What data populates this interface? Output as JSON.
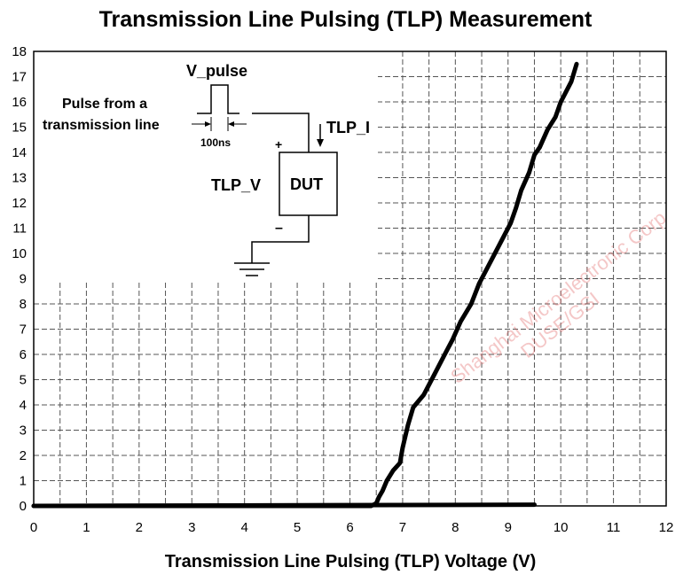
{
  "chart_data": {
    "type": "line",
    "title": "Transmission Line Pulsing (TLP) Measurement",
    "xlabel": "Transmission Line Pulsing (TLP) Voltage (V)",
    "ylabel": "",
    "xlim": [
      0,
      12
    ],
    "ylim": [
      0,
      18
    ],
    "x_ticks": [
      "0",
      "1",
      "2",
      "3",
      "4",
      "5",
      "6",
      "7",
      "8",
      "9",
      "10",
      "11",
      "12"
    ],
    "y_ticks": [
      "0",
      "1",
      "2",
      "3",
      "4",
      "5",
      "6",
      "7",
      "8",
      "9",
      "10",
      "11",
      "12",
      "13",
      "14",
      "15",
      "16",
      "17",
      "18"
    ],
    "grid": true,
    "series": [
      {
        "color": "#000000",
        "points": [
          [
            0,
            0
          ],
          [
            6.4,
            0
          ],
          [
            6.5,
            0.1
          ],
          [
            6.55,
            0.35
          ],
          [
            6.62,
            0.6
          ],
          [
            6.7,
            1.0
          ],
          [
            6.82,
            1.4
          ],
          [
            6.95,
            1.7
          ],
          [
            7.0,
            2.3
          ],
          [
            7.1,
            3.2
          ],
          [
            7.2,
            3.9
          ],
          [
            7.4,
            4.4
          ],
          [
            7.6,
            5.2
          ],
          [
            7.8,
            6.0
          ],
          [
            7.95,
            6.6
          ],
          [
            8.1,
            7.3
          ],
          [
            8.3,
            8.0
          ],
          [
            8.45,
            8.8
          ],
          [
            8.6,
            9.4
          ],
          [
            8.8,
            10.2
          ],
          [
            8.95,
            10.8
          ],
          [
            9.05,
            11.2
          ],
          [
            9.15,
            11.8
          ],
          [
            9.25,
            12.5
          ],
          [
            9.4,
            13.2
          ],
          [
            9.5,
            13.9
          ],
          [
            9.6,
            14.2
          ],
          [
            9.75,
            14.9
          ],
          [
            9.9,
            15.4
          ],
          [
            10.0,
            16.0
          ],
          [
            10.2,
            16.8
          ],
          [
            10.3,
            17.5
          ]
        ]
      },
      {
        "color": "#000000",
        "points": [
          [
            0,
            0
          ],
          [
            9.5,
            0.05
          ]
        ]
      }
    ],
    "inset_diagram": {
      "pulse_label": "V_pulse",
      "source_label": "Pulse from a transmission line",
      "source_line1": "Pulse from a",
      "source_line2": "transmission line",
      "width_label": "100ns",
      "current_label": "TLP_I",
      "voltage_label": "TLP_V",
      "device_label": "DUT",
      "plus_sign": "+",
      "minus_sign": "–"
    }
  },
  "watermark_lines": [
    "Shanghai Microelectronic Corp",
    "DUSE/GSI"
  ]
}
